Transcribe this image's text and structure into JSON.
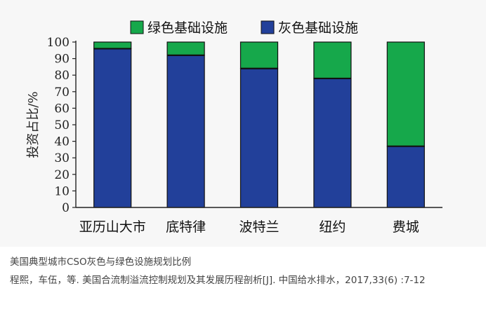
{
  "chart_data": {
    "type": "bar",
    "stacked": true,
    "categories": [
      "亚历山大市",
      "底特律",
      "波特兰",
      "纽约",
      "费城"
    ],
    "series": [
      {
        "name": "灰色基础设施",
        "values": [
          96,
          92,
          84,
          78,
          37
        ],
        "color": "#22409a"
      },
      {
        "name": "绿色基础设施",
        "values": [
          4,
          8,
          16,
          22,
          63
        ],
        "color": "#16a84b"
      }
    ],
    "ylabel": "投资占比/%",
    "ylim": [
      0,
      100
    ],
    "yticks": [
      0,
      10,
      20,
      30,
      40,
      50,
      60,
      70,
      80,
      90,
      100
    ],
    "legend_position": "top",
    "grid": false
  },
  "caption": {
    "title": "美国典型城市CSO灰色与绿色设施规划比例",
    "reference": "程熙，车伍，等. 美国合流制溢流控制规划及其发展历程剖析[J]. 中国给水排水，2017,33(6) :7-12"
  }
}
